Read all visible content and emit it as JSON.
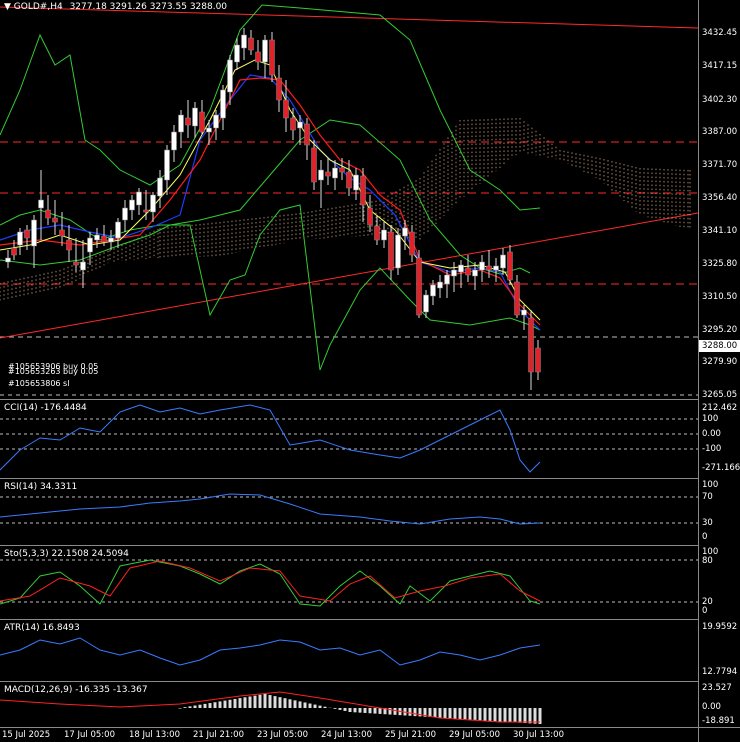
{
  "header": {
    "symbol": "GOLD#,H4",
    "ohlc": "3277.18 3291.26 3273.55 3288.00"
  },
  "price_axis": [
    "3432.45",
    "3417.15",
    "3402.30",
    "3387.00",
    "3371.70",
    "3356.40",
    "3341.10",
    "3325.80",
    "3310.50",
    "3295.20",
    "3279.90",
    "3265.05"
  ],
  "current_price": "3288.00",
  "orders": [
    "#105653906 buy 0.05",
    "#105653263 buy 0.05",
    "#105653806 sl"
  ],
  "indicators": {
    "cci": {
      "label": "CCI(14) -176.4484",
      "axis": [
        "212.462",
        "100",
        "0.00",
        "-100",
        "-271.1664"
      ]
    },
    "rsi": {
      "label": "RSI(14) 34.3311",
      "axis": [
        "100",
        "70",
        "30",
        "0"
      ]
    },
    "sto": {
      "label": "Sto(5,3,3) 22.1508 24.5094",
      "axis": [
        "100",
        "80",
        "20",
        "0"
      ]
    },
    "atr": {
      "label": "ATR(14) 16.8493",
      "axis": [
        "19.9592",
        "12.7794"
      ]
    },
    "macd": {
      "label": "MACD(12,26,9) -16.335 -13.367",
      "axis": [
        "23.527",
        "0.00",
        "-18.891"
      ]
    }
  },
  "time_axis": [
    "15 Jul 2025",
    "17 Jul 05:00",
    "18 Jul 13:00",
    "21 Jul 21:00",
    "23 Jul 05:00",
    "24 Jul 13:00",
    "25 Jul 21:00",
    "29 Jul 05:00",
    "30 Jul 13:00"
  ],
  "colors": {
    "bull": "#ffffff",
    "bear": "#e0222a",
    "ma_fast": "#ffff66",
    "ma_mid": "#ff1a1a",
    "ma_slow": "#1f3cff",
    "band": "#33cc33",
    "hline": "#ff2a2a",
    "indicator": "#3a7bff",
    "signal": "#ff2020"
  }
}
